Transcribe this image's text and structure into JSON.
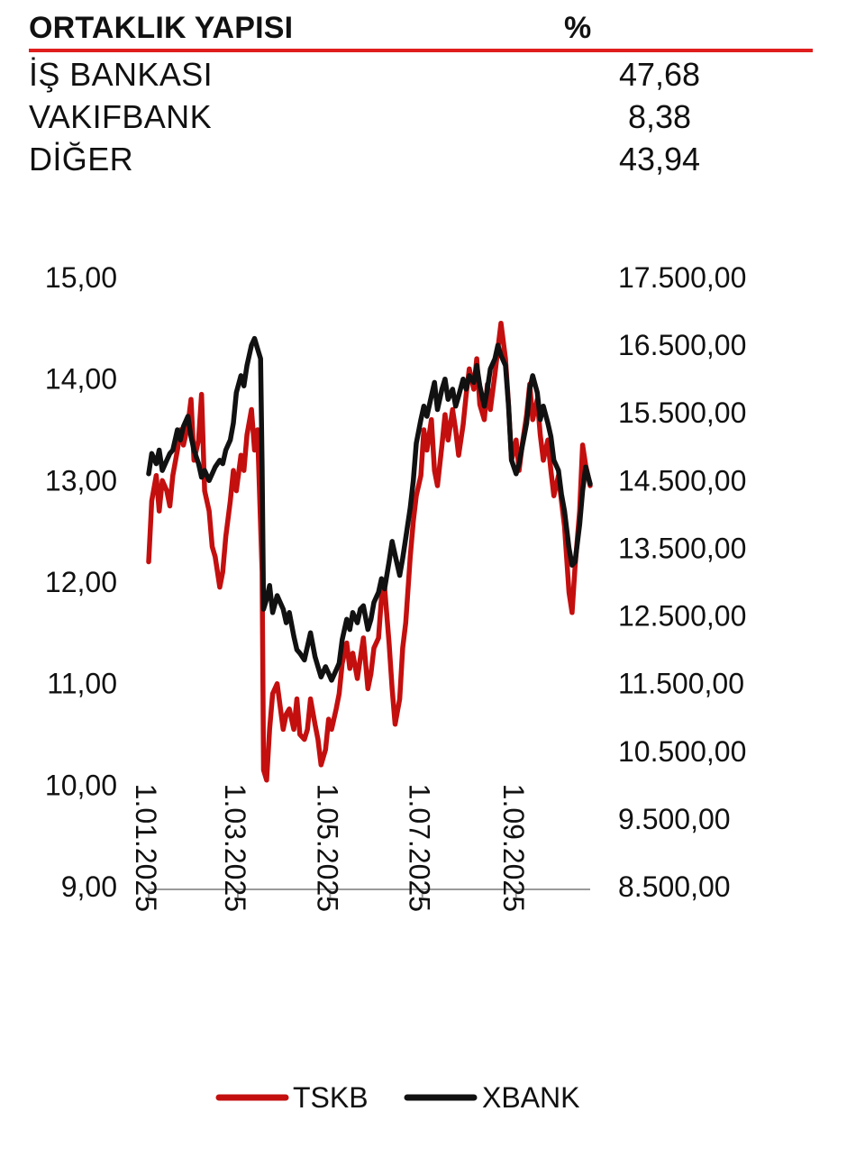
{
  "ownership": {
    "title": "ORTAKLIK YAPISI",
    "pct_header": "%",
    "rows": [
      {
        "name": "İŞ BANKASI",
        "value": "47,68"
      },
      {
        "name": "VAKIFBANK",
        "value": "8,38"
      },
      {
        "name": "DİĞER",
        "value": "43,94"
      }
    ]
  },
  "chart_data": {
    "type": "line",
    "title": "",
    "xlabel": "",
    "ylabel": "",
    "left_axis": {
      "ylim": [
        9,
        15
      ],
      "ticks": [
        "15,00",
        "14,00",
        "13,00",
        "12,00",
        "11,00",
        "10,00",
        "9,00"
      ],
      "tick_values": [
        15,
        14,
        13,
        12,
        11,
        10,
        9
      ]
    },
    "right_axis": {
      "ylim": [
        8500,
        17500
      ],
      "ticks": [
        "17.500,00",
        "16.500,00",
        "15.500,00",
        "14.500,00",
        "13.500,00",
        "12.500,00",
        "11.500,00",
        "10.500,00",
        "9.500,00",
        "8.500,00"
      ],
      "tick_values": [
        17500,
        16500,
        15500,
        14500,
        13500,
        12500,
        11500,
        10500,
        9500,
        8500
      ]
    },
    "x_axis": {
      "type": "date",
      "range": [
        "2025-01-01",
        "2025-10-20"
      ],
      "ticks": [
        {
          "label": "1.01.2025",
          "date": "2025-01-01"
        },
        {
          "label": "1.03.2025",
          "date": "2025-03-01"
        },
        {
          "label": "1.05.2025",
          "date": "2025-05-01"
        },
        {
          "label": "1.07.2025",
          "date": "2025-07-01"
        },
        {
          "label": "1.09.2025",
          "date": "2025-09-01"
        }
      ]
    },
    "legend_position": "bottom-center",
    "grid": false,
    "series": [
      {
        "name": "TSKB",
        "axis": "left",
        "color": "#c40f0f",
        "points": [
          [
            "2025-01-01",
            12.2
          ],
          [
            "2025-01-03",
            12.8
          ],
          [
            "2025-01-06",
            13.05
          ],
          [
            "2025-01-08",
            12.7
          ],
          [
            "2025-01-10",
            13.0
          ],
          [
            "2025-01-13",
            12.9
          ],
          [
            "2025-01-15",
            12.75
          ],
          [
            "2025-01-17",
            13.05
          ],
          [
            "2025-01-20",
            13.3
          ],
          [
            "2025-01-22",
            13.5
          ],
          [
            "2025-01-24",
            13.35
          ],
          [
            "2025-01-27",
            13.55
          ],
          [
            "2025-01-29",
            13.8
          ],
          [
            "2025-01-31",
            13.2
          ],
          [
            "2025-02-03",
            13.4
          ],
          [
            "2025-02-05",
            13.85
          ],
          [
            "2025-02-07",
            12.9
          ],
          [
            "2025-02-10",
            12.7
          ],
          [
            "2025-02-12",
            12.35
          ],
          [
            "2025-02-14",
            12.25
          ],
          [
            "2025-02-17",
            11.95
          ],
          [
            "2025-02-19",
            12.1
          ],
          [
            "2025-02-21",
            12.45
          ],
          [
            "2025-02-24",
            12.8
          ],
          [
            "2025-02-26",
            13.1
          ],
          [
            "2025-02-28",
            12.9
          ],
          [
            "2025-03-03",
            13.25
          ],
          [
            "2025-03-05",
            13.1
          ],
          [
            "2025-03-07",
            13.45
          ],
          [
            "2025-03-10",
            13.7
          ],
          [
            "2025-03-12",
            13.3
          ],
          [
            "2025-03-14",
            13.5
          ],
          [
            "2025-03-17",
            12.1
          ],
          [
            "2025-03-18",
            10.15
          ],
          [
            "2025-03-20",
            10.05
          ],
          [
            "2025-03-22",
            10.55
          ],
          [
            "2025-03-24",
            10.9
          ],
          [
            "2025-03-27",
            11.0
          ],
          [
            "2025-03-31",
            10.55
          ],
          [
            "2025-04-02",
            10.7
          ],
          [
            "2025-04-04",
            10.75
          ],
          [
            "2025-04-07",
            10.55
          ],
          [
            "2025-04-09",
            10.85
          ],
          [
            "2025-04-11",
            10.5
          ],
          [
            "2025-04-14",
            10.45
          ],
          [
            "2025-04-16",
            10.55
          ],
          [
            "2025-04-18",
            10.85
          ],
          [
            "2025-04-21",
            10.6
          ],
          [
            "2025-04-23",
            10.45
          ],
          [
            "2025-04-25",
            10.2
          ],
          [
            "2025-04-28",
            10.35
          ],
          [
            "2025-04-30",
            10.65
          ],
          [
            "2025-05-02",
            10.55
          ],
          [
            "2025-05-05",
            10.75
          ],
          [
            "2025-05-07",
            10.9
          ],
          [
            "2025-05-09",
            11.2
          ],
          [
            "2025-05-12",
            11.4
          ],
          [
            "2025-05-14",
            11.15
          ],
          [
            "2025-05-16",
            11.3
          ],
          [
            "2025-05-19",
            11.05
          ],
          [
            "2025-05-21",
            11.25
          ],
          [
            "2025-05-23",
            11.45
          ],
          [
            "2025-05-26",
            10.95
          ],
          [
            "2025-05-28",
            11.1
          ],
          [
            "2025-05-30",
            11.35
          ],
          [
            "2025-06-02",
            11.45
          ],
          [
            "2025-06-04",
            11.85
          ],
          [
            "2025-06-06",
            11.95
          ],
          [
            "2025-06-09",
            11.4
          ],
          [
            "2025-06-11",
            10.95
          ],
          [
            "2025-06-13",
            10.6
          ],
          [
            "2025-06-16",
            10.85
          ],
          [
            "2025-06-18",
            11.35
          ],
          [
            "2025-06-20",
            11.6
          ],
          [
            "2025-06-23",
            12.25
          ],
          [
            "2025-06-25",
            12.6
          ],
          [
            "2025-06-27",
            12.85
          ],
          [
            "2025-06-30",
            13.05
          ],
          [
            "2025-07-02",
            13.5
          ],
          [
            "2025-07-04",
            13.3
          ],
          [
            "2025-07-07",
            13.6
          ],
          [
            "2025-07-09",
            13.1
          ],
          [
            "2025-07-11",
            12.95
          ],
          [
            "2025-07-14",
            13.35
          ],
          [
            "2025-07-16",
            13.65
          ],
          [
            "2025-07-18",
            13.4
          ],
          [
            "2025-07-21",
            13.7
          ],
          [
            "2025-07-23",
            13.5
          ],
          [
            "2025-07-25",
            13.25
          ],
          [
            "2025-07-28",
            13.55
          ],
          [
            "2025-07-30",
            13.85
          ],
          [
            "2025-08-01",
            14.1
          ],
          [
            "2025-08-04",
            13.9
          ],
          [
            "2025-08-06",
            14.2
          ],
          [
            "2025-08-08",
            13.75
          ],
          [
            "2025-08-11",
            13.6
          ],
          [
            "2025-08-13",
            13.95
          ],
          [
            "2025-08-15",
            13.7
          ],
          [
            "2025-08-18",
            14.05
          ],
          [
            "2025-08-20",
            14.3
          ],
          [
            "2025-08-22",
            14.55
          ],
          [
            "2025-08-25",
            14.2
          ],
          [
            "2025-08-27",
            13.75
          ],
          [
            "2025-08-29",
            13.2
          ],
          [
            "2025-09-01",
            13.4
          ],
          [
            "2025-09-03",
            13.1
          ],
          [
            "2025-09-05",
            13.35
          ],
          [
            "2025-09-08",
            13.65
          ],
          [
            "2025-09-10",
            13.95
          ],
          [
            "2025-09-12",
            13.6
          ],
          [
            "2025-09-15",
            13.8
          ],
          [
            "2025-09-17",
            13.45
          ],
          [
            "2025-09-19",
            13.2
          ],
          [
            "2025-09-22",
            13.4
          ],
          [
            "2025-09-24",
            13.1
          ],
          [
            "2025-09-26",
            12.85
          ],
          [
            "2025-09-29",
            13.05
          ],
          [
            "2025-10-01",
            12.8
          ],
          [
            "2025-10-03",
            12.55
          ],
          [
            "2025-10-06",
            11.9
          ],
          [
            "2025-10-08",
            11.7
          ],
          [
            "2025-10-10",
            12.15
          ],
          [
            "2025-10-13",
            12.7
          ],
          [
            "2025-10-15",
            13.35
          ],
          [
            "2025-10-17",
            13.15
          ],
          [
            "2025-10-20",
            12.95
          ]
        ]
      },
      {
        "name": "XBANK",
        "axis": "right",
        "color": "#111111",
        "points": [
          [
            "2025-01-01",
            14.6
          ],
          [
            "2025-01-03",
            14.9
          ],
          [
            "2025-01-06",
            14.75
          ],
          [
            "2025-01-08",
            14.95
          ],
          [
            "2025-01-10",
            14.65
          ],
          [
            "2025-01-13",
            14.8
          ],
          [
            "2025-01-15",
            14.9
          ],
          [
            "2025-01-17",
            14.95
          ],
          [
            "2025-01-20",
            15.25
          ],
          [
            "2025-01-22",
            15.1
          ],
          [
            "2025-01-24",
            15.3
          ],
          [
            "2025-01-27",
            15.45
          ],
          [
            "2025-01-29",
            15.15
          ],
          [
            "2025-01-31",
            14.95
          ],
          [
            "2025-02-03",
            14.75
          ],
          [
            "2025-02-05",
            14.55
          ],
          [
            "2025-02-07",
            14.65
          ],
          [
            "2025-02-10",
            14.5
          ],
          [
            "2025-02-12",
            14.6
          ],
          [
            "2025-02-14",
            14.7
          ],
          [
            "2025-02-17",
            14.8
          ],
          [
            "2025-02-19",
            14.75
          ],
          [
            "2025-02-21",
            14.95
          ],
          [
            "2025-02-24",
            15.1
          ],
          [
            "2025-02-26",
            15.35
          ],
          [
            "2025-02-28",
            15.8
          ],
          [
            "2025-03-03",
            16.05
          ],
          [
            "2025-03-05",
            15.9
          ],
          [
            "2025-03-07",
            16.2
          ],
          [
            "2025-03-10",
            16.5
          ],
          [
            "2025-03-12",
            16.6
          ],
          [
            "2025-03-14",
            16.45
          ],
          [
            "2025-03-16",
            16.3
          ],
          [
            "2025-03-17",
            14.7
          ],
          [
            "2025-03-18",
            12.6
          ],
          [
            "2025-03-20",
            12.75
          ],
          [
            "2025-03-22",
            12.95
          ],
          [
            "2025-03-24",
            12.55
          ],
          [
            "2025-03-27",
            12.8
          ],
          [
            "2025-03-31",
            12.6
          ],
          [
            "2025-04-02",
            12.4
          ],
          [
            "2025-04-04",
            12.55
          ],
          [
            "2025-04-07",
            12.2
          ],
          [
            "2025-04-09",
            12.0
          ],
          [
            "2025-04-11",
            11.95
          ],
          [
            "2025-04-14",
            11.85
          ],
          [
            "2025-04-16",
            12.05
          ],
          [
            "2025-04-18",
            12.25
          ],
          [
            "2025-04-21",
            11.9
          ],
          [
            "2025-04-23",
            11.75
          ],
          [
            "2025-04-25",
            11.6
          ],
          [
            "2025-04-28",
            11.75
          ],
          [
            "2025-04-30",
            11.65
          ],
          [
            "2025-05-02",
            11.55
          ],
          [
            "2025-05-05",
            11.7
          ],
          [
            "2025-05-07",
            11.8
          ],
          [
            "2025-05-09",
            12.15
          ],
          [
            "2025-05-12",
            12.45
          ],
          [
            "2025-05-14",
            12.3
          ],
          [
            "2025-05-16",
            12.55
          ],
          [
            "2025-05-19",
            12.4
          ],
          [
            "2025-05-21",
            12.6
          ],
          [
            "2025-05-23",
            12.65
          ],
          [
            "2025-05-26",
            12.3
          ],
          [
            "2025-05-28",
            12.45
          ],
          [
            "2025-05-30",
            12.7
          ],
          [
            "2025-06-02",
            12.85
          ],
          [
            "2025-06-04",
            13.05
          ],
          [
            "2025-06-06",
            12.9
          ],
          [
            "2025-06-09",
            13.3
          ],
          [
            "2025-06-11",
            13.6
          ],
          [
            "2025-06-13",
            13.4
          ],
          [
            "2025-06-16",
            13.1
          ],
          [
            "2025-06-18",
            13.35
          ],
          [
            "2025-06-20",
            13.65
          ],
          [
            "2025-06-23",
            14.1
          ],
          [
            "2025-06-25",
            14.5
          ],
          [
            "2025-06-27",
            15.05
          ],
          [
            "2025-06-30",
            15.4
          ],
          [
            "2025-07-02",
            15.6
          ],
          [
            "2025-07-04",
            15.45
          ],
          [
            "2025-07-07",
            15.75
          ],
          [
            "2025-07-09",
            15.95
          ],
          [
            "2025-07-11",
            15.55
          ],
          [
            "2025-07-14",
            15.85
          ],
          [
            "2025-07-16",
            16.0
          ],
          [
            "2025-07-18",
            15.7
          ],
          [
            "2025-07-21",
            15.85
          ],
          [
            "2025-07-23",
            15.6
          ],
          [
            "2025-07-25",
            15.75
          ],
          [
            "2025-07-28",
            16.0
          ],
          [
            "2025-07-30",
            15.85
          ],
          [
            "2025-08-01",
            16.05
          ],
          [
            "2025-08-04",
            15.95
          ],
          [
            "2025-08-06",
            16.2
          ],
          [
            "2025-08-08",
            15.9
          ],
          [
            "2025-08-11",
            15.6
          ],
          [
            "2025-08-13",
            15.85
          ],
          [
            "2025-08-15",
            16.15
          ],
          [
            "2025-08-18",
            16.3
          ],
          [
            "2025-08-20",
            16.5
          ],
          [
            "2025-08-22",
            16.35
          ],
          [
            "2025-08-25",
            16.2
          ],
          [
            "2025-08-27",
            15.6
          ],
          [
            "2025-08-29",
            14.8
          ],
          [
            "2025-09-01",
            14.6
          ],
          [
            "2025-09-03",
            14.75
          ],
          [
            "2025-09-05",
            15.0
          ],
          [
            "2025-09-08",
            15.35
          ],
          [
            "2025-09-10",
            15.85
          ],
          [
            "2025-09-12",
            16.05
          ],
          [
            "2025-09-15",
            15.8
          ],
          [
            "2025-09-17",
            15.4
          ],
          [
            "2025-09-19",
            15.6
          ],
          [
            "2025-09-22",
            15.35
          ],
          [
            "2025-09-24",
            15.15
          ],
          [
            "2025-09-26",
            14.8
          ],
          [
            "2025-09-29",
            14.65
          ],
          [
            "2025-10-01",
            14.3
          ],
          [
            "2025-10-03",
            14.05
          ],
          [
            "2025-10-06",
            13.5
          ],
          [
            "2025-10-08",
            13.25
          ],
          [
            "2025-10-10",
            13.3
          ],
          [
            "2025-10-13",
            13.85
          ],
          [
            "2025-10-15",
            14.35
          ],
          [
            "2025-10-17",
            14.7
          ],
          [
            "2025-10-20",
            14.45
          ]
        ]
      }
    ]
  }
}
